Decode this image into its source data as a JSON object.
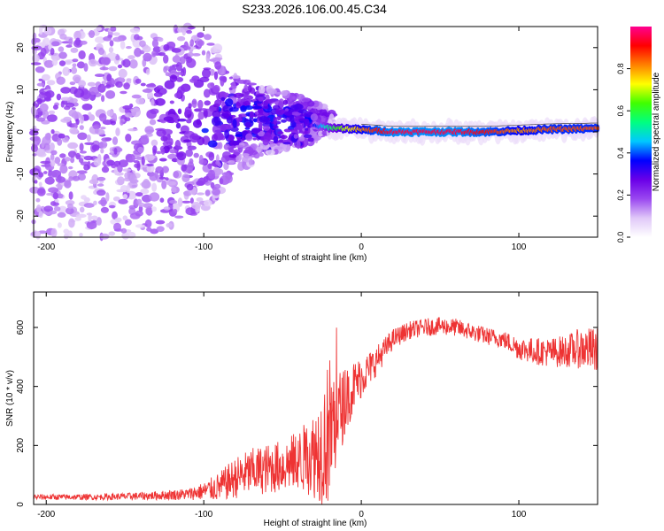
{
  "title": "S233.2026.106.00.45.C34",
  "chart_data": [
    {
      "type": "heatmap",
      "description_key": "spectrogram",
      "xlabel": "Height of straight line (km)",
      "ylabel": "Frequency (Hz)",
      "xlim": [
        -208,
        150
      ],
      "ylim": [
        -25,
        25
      ],
      "xticks": [
        -200,
        -100,
        0,
        100
      ],
      "yticks": [
        -20,
        -10,
        0,
        10,
        20
      ],
      "colorbar": {
        "label": "Normalized spectral amplitude",
        "range": [
          0,
          1
        ],
        "ticks": [
          0.0,
          0.2,
          0.4,
          0.6,
          0.8
        ],
        "tick_labels": [
          "0.0",
          "0.2",
          "0.4",
          "0.6",
          "0.8"
        ],
        "colormap": [
          "#ffffff",
          "#e0c8f8",
          "#9a48f0",
          "#6a00e8",
          "#0000ff",
          "#00c8ff",
          "#00ff80",
          "#40ff00",
          "#ffff00",
          "#ff8000",
          "#ff0000",
          "#ff0090"
        ]
      },
      "ridge": {
        "x": [
          -30,
          -20,
          -10,
          0,
          10,
          20,
          40,
          60,
          80,
          100,
          120,
          150
        ],
        "frequency": [
          1.5,
          1.0,
          0.8,
          0.5,
          0.3,
          0.0,
          0.0,
          0.0,
          0.0,
          0.3,
          0.6,
          0.8
        ],
        "amplitude": [
          0.35,
          0.55,
          0.7,
          0.8,
          0.9,
          0.95,
          0.95,
          0.95,
          0.9,
          0.8,
          0.85,
          0.85
        ]
      },
      "spread_envelope_hz": {
        "x": [
          -208,
          -150,
          -120,
          -100,
          -80,
          -60,
          -40,
          -25,
          -20
        ],
        "halfwidth": [
          25,
          25,
          23,
          22,
          12,
          8,
          6,
          4,
          2
        ]
      }
    },
    {
      "type": "line",
      "description_key": "snr",
      "xlabel": "Height of straight line (km)",
      "ylabel": "SNR (10 * v/v)",
      "xlim": [
        -208,
        150
      ],
      "ylim": [
        0,
        720
      ],
      "xticks": [
        -200,
        -100,
        0,
        100
      ],
      "yticks": [
        0,
        200,
        400,
        600
      ],
      "line_color": "#ee3333",
      "series": [
        {
          "name": "SNR",
          "x": [
            -208,
            -190,
            -170,
            -150,
            -130,
            -110,
            -100,
            -90,
            -80,
            -70,
            -60,
            -50,
            -40,
            -30,
            -25,
            -20,
            -15,
            -10,
            -5,
            0,
            10,
            20,
            30,
            40,
            50,
            60,
            70,
            80,
            90,
            100,
            110,
            120,
            130,
            140,
            150
          ],
          "values": [
            25,
            25,
            25,
            27,
            30,
            35,
            45,
            60,
            90,
            110,
            120,
            130,
            150,
            170,
            200,
            250,
            300,
            350,
            400,
            430,
            490,
            560,
            590,
            600,
            605,
            600,
            585,
            570,
            560,
            530,
            520,
            515,
            520,
            530,
            520
          ],
          "noise_amplitude": [
            10,
            10,
            10,
            12,
            15,
            20,
            30,
            50,
            70,
            80,
            85,
            90,
            100,
            150,
            200,
            260,
            160,
            110,
            90,
            70,
            50,
            35,
            30,
            30,
            30,
            30,
            30,
            30,
            30,
            40,
            45,
            50,
            55,
            70,
            80
          ]
        }
      ]
    }
  ]
}
